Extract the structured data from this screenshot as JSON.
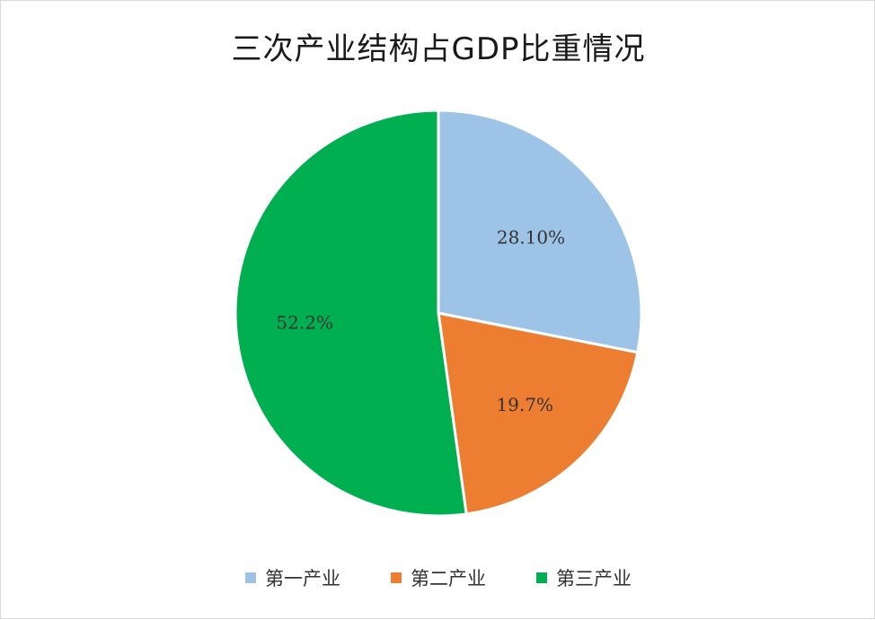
{
  "chart_data": {
    "type": "pie",
    "title": "三次产业结构占GDP比重情况",
    "categories": [
      "第一产业",
      "第二产业",
      "第三产业"
    ],
    "values": [
      28.1,
      19.7,
      52.2
    ],
    "labels": [
      "28.10%",
      "19.7%",
      "52.2%"
    ],
    "colors": [
      "#9dc3e6",
      "#ed7d31",
      "#00b050"
    ],
    "legend_position": "bottom",
    "start_angle": "12 o'clock",
    "direction": "clockwise"
  }
}
